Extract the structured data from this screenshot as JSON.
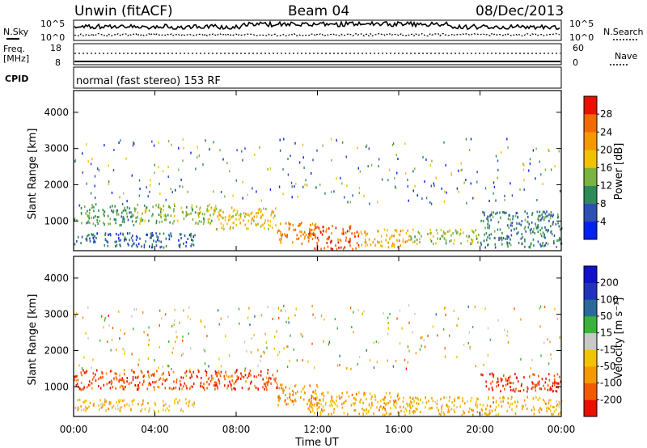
{
  "header": {
    "station": "Unwin (fitACF)",
    "beam": "Beam 04",
    "date": "08/Dec/2013"
  },
  "top_panels": {
    "nsky_label": "N.Sky",
    "nsearch_label": "N.Search",
    "noise_ticks": [
      "10^5",
      "10^0"
    ],
    "freq_label": "Freq.",
    "freq_unit": "[MHz]",
    "freq_ticks": [
      "18",
      "8"
    ],
    "nave_label": "Nave",
    "nave_ticks": [
      "60",
      "0"
    ],
    "cpid_label": "CPID",
    "cpid_text": "normal (fast stereo) 153 RF"
  },
  "chart_data": [
    {
      "type": "heatmap",
      "name": "power",
      "ylabel": "Slant Range [km]",
      "ylim": [
        180,
        4600
      ],
      "yticks": [
        "1000",
        "2000",
        "3000",
        "4000"
      ],
      "colorbar_label": "Power [dB]",
      "colorbar_ticks": [
        "4",
        "8",
        "12",
        "16",
        "20",
        "24",
        "28"
      ],
      "colorbar_colors": [
        "#0022ee",
        "#2f4fb0",
        "#2f8a5a",
        "#7ab341",
        "#f2c200",
        "#f39a00",
        "#f36a00",
        "#e81000"
      ],
      "clim": [
        0,
        32
      ],
      "bands": [
        {
          "t0": 0,
          "t1": 3,
          "r0": 900,
          "r1": 1500,
          "value": 11
        },
        {
          "t0": 3,
          "t1": 7,
          "r0": 950,
          "r1": 1500,
          "value": 14
        },
        {
          "t0": 7,
          "t1": 10,
          "r0": 800,
          "r1": 1400,
          "value": 19
        },
        {
          "t0": 10,
          "t1": 12,
          "r0": 400,
          "r1": 1000,
          "value": 24
        },
        {
          "t0": 11.5,
          "t1": 14,
          "r0": 250,
          "r1": 900,
          "value": 27
        },
        {
          "t0": 14,
          "t1": 16.5,
          "r0": 300,
          "r1": 800,
          "value": 21
        },
        {
          "t0": 16.5,
          "t1": 20,
          "r0": 400,
          "r1": 800,
          "value": 15
        },
        {
          "t0": 20,
          "t1": 24,
          "r0": 300,
          "r1": 1300,
          "value": 9
        },
        {
          "t0": 0,
          "t1": 6,
          "r0": 300,
          "r1": 700,
          "value": 7
        }
      ]
    },
    {
      "type": "heatmap",
      "name": "velocity",
      "ylabel": "Slant Range [km]",
      "xlabel": "Time UT",
      "xticks": [
        "00:00",
        "04:00",
        "08:00",
        "12:00",
        "16:00",
        "20:00",
        "00:00"
      ],
      "xlim": [
        0,
        24
      ],
      "ylim": [
        180,
        4600
      ],
      "yticks": [
        "1000",
        "2000",
        "3000",
        "4000"
      ],
      "colorbar_label": "Velocity [m s⁻¹]",
      "colorbar_ticks": [
        "-200",
        "-100",
        "-50",
        "-15",
        "15",
        "50",
        "100",
        "200"
      ],
      "colorbar_colors": [
        "#e81000",
        "#f35a00",
        "#f39a00",
        "#f3c200",
        "#c8c8c8",
        "#3bb33b",
        "#2a6a9a",
        "#2233bb",
        "#1111cc"
      ],
      "clim": [
        -250,
        250
      ],
      "bands": [
        {
          "t0": 0,
          "t1": 10,
          "r0": 950,
          "r1": 1500,
          "value": -180
        },
        {
          "t0": 10,
          "t1": 12,
          "r0": 500,
          "r1": 1100,
          "value": -120
        },
        {
          "t0": 11.5,
          "t1": 16,
          "r0": 250,
          "r1": 900,
          "value": -90
        },
        {
          "t0": 16,
          "t1": 24,
          "r0": 250,
          "r1": 750,
          "value": -80
        },
        {
          "t0": 20,
          "t1": 24,
          "r0": 900,
          "r1": 1400,
          "value": -200
        },
        {
          "t0": 0,
          "t1": 6,
          "r0": 350,
          "r1": 700,
          "value": -60
        }
      ]
    }
  ]
}
